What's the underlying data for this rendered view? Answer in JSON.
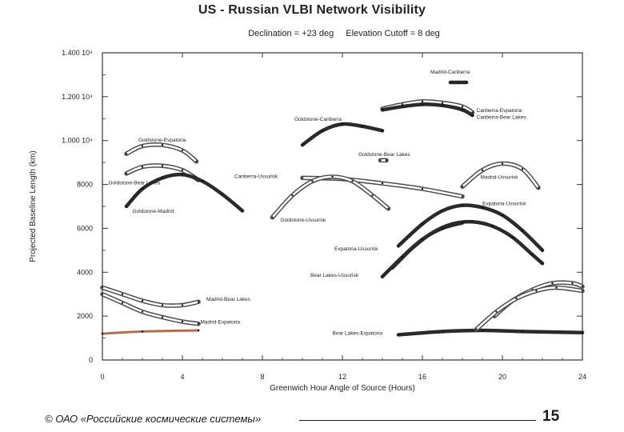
{
  "footer": {
    "copyright": "© ОАО «Российские космические системы»",
    "page_number": "15"
  },
  "chart_data": {
    "type": "line",
    "title": "US - Russian VLBI Network Visibility",
    "subtitle_declination": "Declination = +23 deg",
    "subtitle_elevation": "Elevation Cutoff = 8 deg",
    "xlabel": "Greenwich Hour Angle of Source (Hours)",
    "ylabel": "Projected Baseline Length (km)",
    "xlim": [
      0,
      24
    ],
    "ylim": [
      0,
      14000
    ],
    "x_ticks": [
      0,
      4,
      8,
      12,
      16,
      20,
      24
    ],
    "x_tick_labels": [
      "0",
      "4",
      "8",
      "12",
      "16",
      "20",
      "24"
    ],
    "y_ticks": [
      0,
      2000,
      4000,
      6000,
      8000,
      10000,
      12000,
      14000
    ],
    "y_tick_labels": [
      "0",
      "2000",
      "4000",
      "6000",
      "8000",
      "1.000 10⁴",
      "1.200 10⁴",
      "1.400 10⁴"
    ],
    "colors": {
      "dark": "#2a2a2a",
      "gray": "#6e6e6e",
      "brown": "#b07050"
    },
    "series": [
      {
        "name": "Madrid-Canberra",
        "style": "dark",
        "x": [
          17.4,
          17.8,
          18.2
        ],
        "y": [
          12650,
          12650,
          12650
        ],
        "label_x": 16.4,
        "label_y": 13050
      },
      {
        "name": "Canberra-Evpatoria",
        "style": "gray",
        "x": [
          14.0,
          15.0,
          16.0,
          17.0,
          18.0,
          18.5
        ],
        "y": [
          11450,
          11650,
          11780,
          11720,
          11550,
          11280
        ],
        "label_x": 18.7,
        "label_y": 11300
      },
      {
        "name": "Canberra-Bear Lakes",
        "style": "dark",
        "x": [
          14.0,
          15.0,
          16.0,
          17.0,
          18.0,
          18.5
        ],
        "y": [
          11400,
          11550,
          11650,
          11600,
          11400,
          11150
        ],
        "label_x": 18.7,
        "label_y": 11000
      },
      {
        "name": "Goldstone-Canberra",
        "style": "dark",
        "x": [
          10.0,
          11.0,
          12.0,
          13.0,
          14.0
        ],
        "y": [
          9800,
          10450,
          10750,
          10650,
          10450
        ],
        "label_x": 9.6,
        "label_y": 10900
      },
      {
        "name": "Goldstone-Evpatoria",
        "style": "gray",
        "x": [
          1.2,
          2.0,
          3.0,
          4.0,
          4.7
        ],
        "y": [
          9400,
          9750,
          9800,
          9550,
          9050
        ],
        "label_x": 1.8,
        "label_y": 9950
      },
      {
        "name": "Goldstone-Bear Lakes",
        "style": "gray",
        "x": [
          1.2,
          2.0,
          3.0,
          4.0,
          4.8
        ],
        "y": [
          8500,
          8800,
          8850,
          8650,
          8200
        ],
        "label_x": 0.3,
        "label_y": 8000
      },
      {
        "name": "Goldstone-Madrid",
        "style": "dark",
        "x": [
          1.2,
          2.0,
          3.0,
          4.0,
          5.0,
          6.0,
          7.0
        ],
        "y": [
          7000,
          7800,
          8300,
          8450,
          8150,
          7550,
          6800
        ],
        "label_x": 1.5,
        "label_y": 6700
      },
      {
        "name": "Goldstone-Bear Lakes",
        "style": "gray",
        "x": [
          13.9,
          14.2
        ],
        "y": [
          9100,
          9100
        ],
        "label_x": 12.8,
        "label_y": 9300
      },
      {
        "name": "Canberra-Ussurisk",
        "style": "gray",
        "x": [
          10.0,
          12.0,
          14.0,
          16.0,
          18.0
        ],
        "y": [
          8300,
          8250,
          8050,
          7800,
          7450
        ],
        "label_x": 6.6,
        "label_y": 8300
      },
      {
        "name": "Goldstone-Ussurisk",
        "style": "gray",
        "x": [
          8.5,
          9.5,
          10.5,
          11.5,
          12.5,
          13.5,
          14.3
        ],
        "y": [
          6500,
          7500,
          8150,
          8350,
          8150,
          7500,
          6900
        ],
        "label_x": 8.9,
        "label_y": 6300
      },
      {
        "name": "Madrid-Ussurisk",
        "style": "gray",
        "x": [
          18.0,
          19.0,
          20.0,
          21.0,
          21.8
        ],
        "y": [
          7900,
          8650,
          8950,
          8700,
          7850
        ],
        "label_x": 18.9,
        "label_y": 8250
      },
      {
        "name": "Evpatoria-Ussurisk",
        "style": "dark",
        "x": [
          14.8,
          16.0,
          17.0,
          18.0,
          19.0,
          20.0,
          21.0,
          22.0
        ],
        "y": [
          5200,
          6200,
          6800,
          7050,
          6950,
          6600,
          5900,
          5000
        ],
        "label_x": 19.0,
        "label_y": 7050
      },
      {
        "name": "Evpatoria-Ussurisk",
        "style": "dark",
        "x": [
          14.5,
          15.5,
          16.5,
          17.5,
          18.5,
          19.5,
          20.5,
          21.5,
          22.0
        ],
        "y": [
          4200,
          5100,
          5800,
          6200,
          6300,
          6100,
          5600,
          4800,
          4400
        ],
        "label_x": 11.6,
        "label_y": 5000
      },
      {
        "name": "Bear Lakes-Ussurisk",
        "style": "dark",
        "x": [
          14.0,
          15.0,
          16.0,
          17.0,
          18.0
        ],
        "y": [
          3800,
          4700,
          5500,
          6000,
          6250
        ],
        "label_x": 10.4,
        "label_y": 3800
      },
      {
        "name": "Madrid-Bear Lakes",
        "style": "gray",
        "x": [
          0.0,
          1.0,
          2.0,
          3.0,
          4.0,
          4.8
        ],
        "y": [
          3300,
          3000,
          2700,
          2500,
          2500,
          2650
        ],
        "label_x": 5.2,
        "label_y": 2700
      },
      {
        "name": "Madrid-Evpatoria",
        "style": "gray",
        "x": [
          0.0,
          1.0,
          2.0,
          3.0,
          4.0,
          4.8
        ],
        "y": [
          3000,
          2600,
          2200,
          1950,
          1750,
          1650
        ],
        "label_x": 4.9,
        "label_y": 1650
      },
      {
        "name": "Goldstone-Madrid (short)",
        "style": "brown",
        "x": [
          0.0,
          2.0,
          4.8
        ],
        "y": [
          1200,
          1300,
          1350
        ],
        "label_x": -1,
        "label_y": -1
      },
      {
        "name": "Bear Lakes-Evpatoria",
        "style": "dark",
        "x": [
          14.8,
          17.0,
          19.0,
          21.0,
          24.0
        ],
        "y": [
          1150,
          1300,
          1350,
          1300,
          1250
        ],
        "label_x": 11.5,
        "label_y": 1150
      },
      {
        "name": "Madrid-Bear Lakes",
        "style": "gray",
        "x": [
          19.6,
          20.5,
          21.5,
          22.5,
          23.5,
          24.0
        ],
        "y": [
          2000,
          2700,
          3200,
          3500,
          3500,
          3350
        ],
        "label_x": -1,
        "label_y": -1
      },
      {
        "name": "Madrid-Evpatoria",
        "style": "gray",
        "x": [
          18.7,
          19.7,
          20.7,
          21.7,
          22.7,
          24.0
        ],
        "y": [
          1400,
          2200,
          2800,
          3150,
          3300,
          3150
        ],
        "label_x": -1,
        "label_y": -1
      }
    ]
  }
}
